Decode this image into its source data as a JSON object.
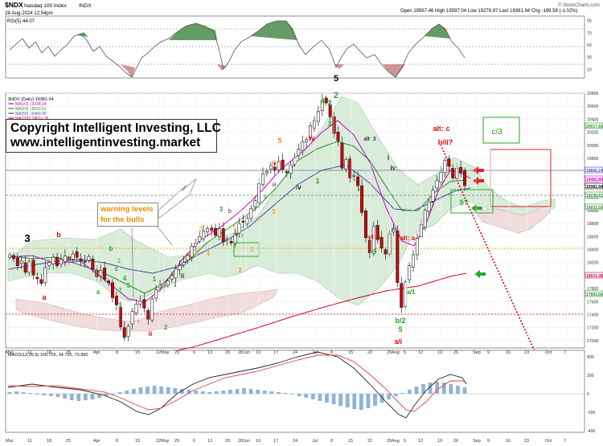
{
  "header": {
    "symbol": "$NDX",
    "name": "Nasdaq 100 Index",
    "exchange": "INDX",
    "date": "28-Aug-2024 12:54pm",
    "ohlc": "Open 19567.46  High 19587.04  Low 19276.97  Last 19381.94  Chg -199.58 (-1.02%)",
    "credit": "© StockCharts.com",
    "rsi_label": "RSI(5) 44.07"
  },
  "legend": {
    "title": "$NDX (Daily) 19381.94",
    "ma20": "MA(20) 19238.24",
    "ma10": "MA(10) 19533.61",
    "ma50": "MA(50) 19460.00",
    "ma200": "MA(200) 18031.36"
  },
  "copyright": {
    "line1": "Copyright Intelligent Investing, LLC",
    "line2": "www.intelligentinvesting.market"
  },
  "warning": {
    "line1": "warning levels",
    "line2": "for the bulls"
  },
  "macd_label": "MACD(12,26,9) 105.725, 34.725, 70.990",
  "colors": {
    "up_candle": "#ffffff",
    "down_candle": "#cc0000",
    "ma20": "#cc00cc",
    "ma50": "#2a8a2a",
    "ma10": "#4444aa",
    "ma200": "#cc0033",
    "cloud": "#d9ecd9",
    "red_label": "#dd0000",
    "green_label": "#22aa22",
    "orange_label": "#f08a00"
  },
  "chart_data": {
    "type": "line",
    "title": "$NDX (Daily) 19381.94",
    "xlabel": "",
    "ylabel": "",
    "ylim": [
      16900,
      20800
    ],
    "x_ticks": [
      "Mar",
      "11",
      "18",
      "25",
      "Apr",
      "8",
      "15",
      "22",
      "29",
      "May",
      "6",
      "13",
      "20",
      "28",
      "Jun",
      "10",
      "17",
      "24",
      "Jul",
      "8",
      "15",
      "22",
      "29",
      "Aug",
      "5",
      "12",
      "19",
      "26",
      "Sep",
      "9",
      "16",
      "23",
      "Oct",
      "7"
    ],
    "y_ticks": [
      17000,
      17200,
      17400,
      17600,
      17800,
      18000,
      18200,
      18400,
      18600,
      18800,
      19000,
      19200,
      19400,
      19600,
      19800,
      20000,
      20200,
      20400,
      20600,
      20800
    ],
    "price_tags": [
      "20017.60",
      "19600.24",
      "19460.80",
      "19381.94",
      "19238.61",
      "19031.50",
      "18031.36",
      "17891.66"
    ],
    "rsi": {
      "ylim": [
        0,
        100
      ],
      "ticks": [
        90,
        70,
        50,
        30,
        10
      ],
      "last": 44.07
    },
    "macd": {
      "ticks": [
        400,
        200,
        0,
        -200,
        -400
      ],
      "macd": 105.725,
      "signal": 34.725,
      "histogram": 70.99
    },
    "series": [
      {
        "name": "$NDX (Daily) 19381.94",
        "values": [
          18320,
          18260,
          18150,
          18220,
          18050,
          18210,
          18010,
          17950,
          17880,
          18120,
          18200,
          18280,
          18150,
          18250,
          18300,
          18240,
          18330,
          18280,
          18220,
          18210,
          18290,
          18100,
          17980,
          18080,
          17940,
          17890,
          17660,
          17550,
          17210,
          17050,
          17220,
          17450,
          17560,
          17610,
          17500,
          17330,
          17640,
          17780,
          17850,
          17850,
          17920,
          18000,
          18100,
          18150,
          18200,
          18310,
          18450,
          18500,
          18600,
          18680,
          18720,
          18690,
          18620,
          18720,
          18520,
          18560,
          18500,
          18640,
          18800,
          18820,
          18880,
          19030,
          19150,
          19410,
          19560,
          19600,
          19690,
          19620,
          19750,
          19630,
          19580,
          19700,
          19810,
          19940,
          20050,
          20090,
          20300,
          20380,
          20520,
          20690,
          20650,
          20440,
          20180,
          20070,
          19650,
          19780,
          19500,
          19540,
          19380,
          18970,
          18580,
          18350,
          18760,
          18550,
          18420,
          18330,
          18640,
          18720,
          17890,
          17510,
          17900,
          18150,
          18320,
          18570,
          18780,
          19000,
          19130,
          19310,
          19460,
          19580,
          19770,
          19680,
          19500,
          19650,
          19580,
          19381
        ]
      }
    ]
  },
  "annotations": [
    {
      "text": "3",
      "color": "#000000"
    },
    {
      "text": "b",
      "color": "#dd0000"
    },
    {
      "text": "a",
      "color": "#dd0000"
    },
    {
      "text": "a",
      "color": "#22aa22"
    },
    {
      "text": "b",
      "color": "#22aa22"
    },
    {
      "text": "1",
      "color": "#22aa22"
    },
    {
      "text": "2",
      "color": "#22aa22"
    },
    {
      "text": "c",
      "color": "#22aa22"
    },
    {
      "text": "3",
      "color": "#22aa22"
    },
    {
      "text": "4",
      "color": "#22aa22"
    },
    {
      "text": "5",
      "color": "#22aa22"
    },
    {
      "text": "i",
      "color": "#dd0000"
    },
    {
      "text": "ii",
      "color": "#dd0000"
    },
    {
      "text": "4",
      "color": "#000000"
    },
    {
      "text": "1",
      "color": "#22aa22"
    },
    {
      "text": "2",
      "color": "#22aa22"
    },
    {
      "text": "i",
      "color": "#333333"
    },
    {
      "text": "ii",
      "color": "#333333"
    },
    {
      "text": "1",
      "color": "#f08a00"
    },
    {
      "text": "2",
      "color": "#f08a00"
    },
    {
      "text": "3",
      "color": "#f08a00"
    },
    {
      "text": "4",
      "color": "#f08a00"
    },
    {
      "text": "3",
      "color": "#22aa22"
    },
    {
      "text": "b",
      "color": "#333333"
    },
    {
      "text": "5",
      "color": "#f08a00"
    },
    {
      "text": "a",
      "color": "#333333"
    },
    {
      "text": "c",
      "color": "#333333"
    },
    {
      "text": "1",
      "color": "#f08a00"
    },
    {
      "text": "2",
      "color": "#f08a00"
    },
    {
      "text": "4",
      "color": "#22aa22"
    },
    {
      "text": "3",
      "color": "#f08a00"
    },
    {
      "text": "4",
      "color": "#f08a00"
    },
    {
      "text": "5",
      "color": "#f08a00"
    },
    {
      "text": "iii",
      "color": "#dd0000"
    },
    {
      "text": "iii",
      "color": "#333333"
    },
    {
      "text": "iv",
      "color": "#333333"
    },
    {
      "text": "iv",
      "color": "#dd0000"
    },
    {
      "text": "1",
      "color": "#22aa22"
    },
    {
      "text": "2",
      "color": "#22aa22"
    },
    {
      "text": "3",
      "color": "#22aa22"
    },
    {
      "text": "4",
      "color": "#22aa22"
    },
    {
      "text": "2",
      "color": "#22aa22"
    },
    {
      "text": "5",
      "color": "#000000"
    },
    {
      "text": "alt: 3",
      "color": "#000000"
    },
    {
      "text": "ii",
      "color": "#333333"
    },
    {
      "text": "i",
      "color": "#333333"
    },
    {
      "text": "alt: b",
      "color": "#dd0000"
    },
    {
      "text": "iii",
      "color": "#333333"
    },
    {
      "text": "iv",
      "color": "#333333"
    },
    {
      "text": "4",
      "color": "#22aa22"
    },
    {
      "text": "alt: a",
      "color": "#dd0000"
    },
    {
      "text": "a/1",
      "color": "#22aa22"
    },
    {
      "text": "b/2",
      "color": "#22aa22"
    },
    {
      "text": "5",
      "color": "#22aa22"
    },
    {
      "text": "a/i",
      "color": "#dd0000"
    },
    {
      "text": "alt: c",
      "color": "#dd0000"
    },
    {
      "text": "b/ii?",
      "color": "#dd0000"
    },
    {
      "text": "c/3",
      "color": "#22aa22"
    },
    {
      "text": "5?",
      "color": "#22aa22"
    },
    {
      "text": "4?",
      "color": "#22aa22"
    },
    {
      "text": "c/iii?",
      "color": "#dd0000"
    }
  ]
}
